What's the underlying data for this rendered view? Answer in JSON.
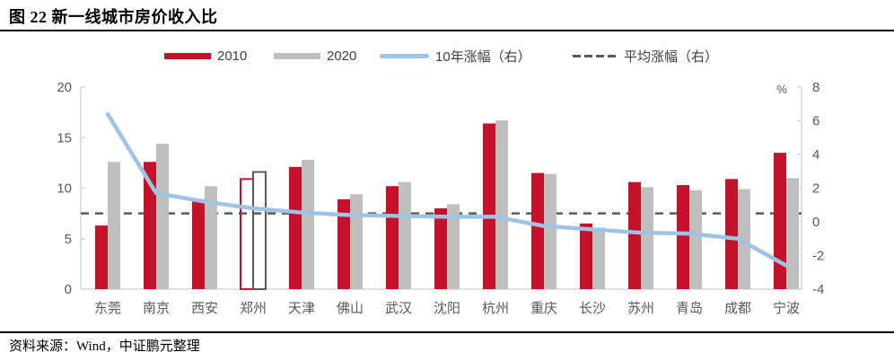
{
  "title": "图 22  新一线城市房价收入比",
  "source": "资料来源：Wind，中证鹏元整理",
  "legend": [
    {
      "label": "2010"
    },
    {
      "label": "2020"
    },
    {
      "label": "10年涨幅（右）"
    },
    {
      "label": "平均涨幅（右）"
    }
  ],
  "colors": {
    "bar_2010": "#C5122B",
    "bar_2020": "#BFBFBF",
    "line_growth": "#9DC3E6",
    "avg_dash": "#595959",
    "highlight_outline_2020": "#5A5A5A",
    "axis_line": "#D9D9D9",
    "tick_label": "#595959"
  },
  "chart_data": {
    "type": "bar",
    "title": "图 22  新一线城市房价收入比",
    "categories": [
      "东莞",
      "南京",
      "西安",
      "郑州",
      "天津",
      "佛山",
      "武汉",
      "沈阳",
      "杭州",
      "重庆",
      "长沙",
      "苏州",
      "青岛",
      "成都",
      "宁波"
    ],
    "series": [
      {
        "name": "2010",
        "type": "bar",
        "axis": "left",
        "values": [
          6.3,
          12.6,
          8.9,
          10.9,
          12.1,
          8.9,
          10.2,
          8.0,
          16.4,
          11.5,
          6.5,
          10.6,
          10.3,
          10.9,
          13.5
        ]
      },
      {
        "name": "2020",
        "type": "bar",
        "axis": "left",
        "values": [
          12.6,
          14.4,
          10.2,
          11.6,
          12.8,
          9.4,
          10.6,
          8.4,
          16.7,
          11.4,
          6.1,
          10.1,
          9.8,
          9.9,
          11.0
        ]
      },
      {
        "name": "10年涨幅（右）",
        "type": "line",
        "axis": "right",
        "values": [
          6.4,
          1.7,
          1.2,
          0.8,
          0.55,
          0.4,
          0.35,
          0.3,
          0.3,
          -0.25,
          -0.45,
          -0.65,
          -0.7,
          -1.0,
          -2.6
        ]
      },
      {
        "name": "平均涨幅（右）",
        "type": "dashed-line",
        "axis": "right",
        "value": 0.5
      }
    ],
    "highlight_category": "郑州",
    "highlight_index": 3,
    "highlight_style": "hollow-outline-bars",
    "left_axis": {
      "min": 0,
      "max": 20,
      "ticks": [
        0,
        5,
        10,
        15,
        20
      ]
    },
    "right_axis": {
      "min": -4,
      "max": 8,
      "ticks": [
        8,
        6,
        4,
        2,
        0,
        -2,
        -4
      ],
      "unit": "%"
    },
    "grid": false,
    "legend_position": "top"
  }
}
